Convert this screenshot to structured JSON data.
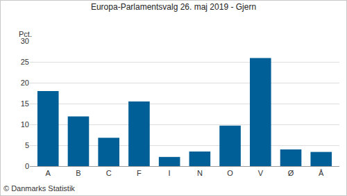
{
  "chart_data": {
    "type": "bar",
    "title": "Europa-Parlamentsvalg 26. maj 2019 - Gjern",
    "y_label": "Pct.",
    "categories": [
      "A",
      "B",
      "C",
      "F",
      "I",
      "N",
      "O",
      "V",
      "Ø",
      "Å"
    ],
    "values": [
      18.0,
      11.9,
      6.8,
      15.5,
      2.2,
      3.5,
      9.7,
      25.9,
      4.0,
      3.4
    ],
    "color": "#005f96",
    "ylim": [
      0,
      30
    ],
    "yticks": [
      0,
      5,
      10,
      15,
      20,
      25,
      30
    ],
    "grid": true,
    "annotations": [
      "© Danmarks Statistik"
    ]
  }
}
